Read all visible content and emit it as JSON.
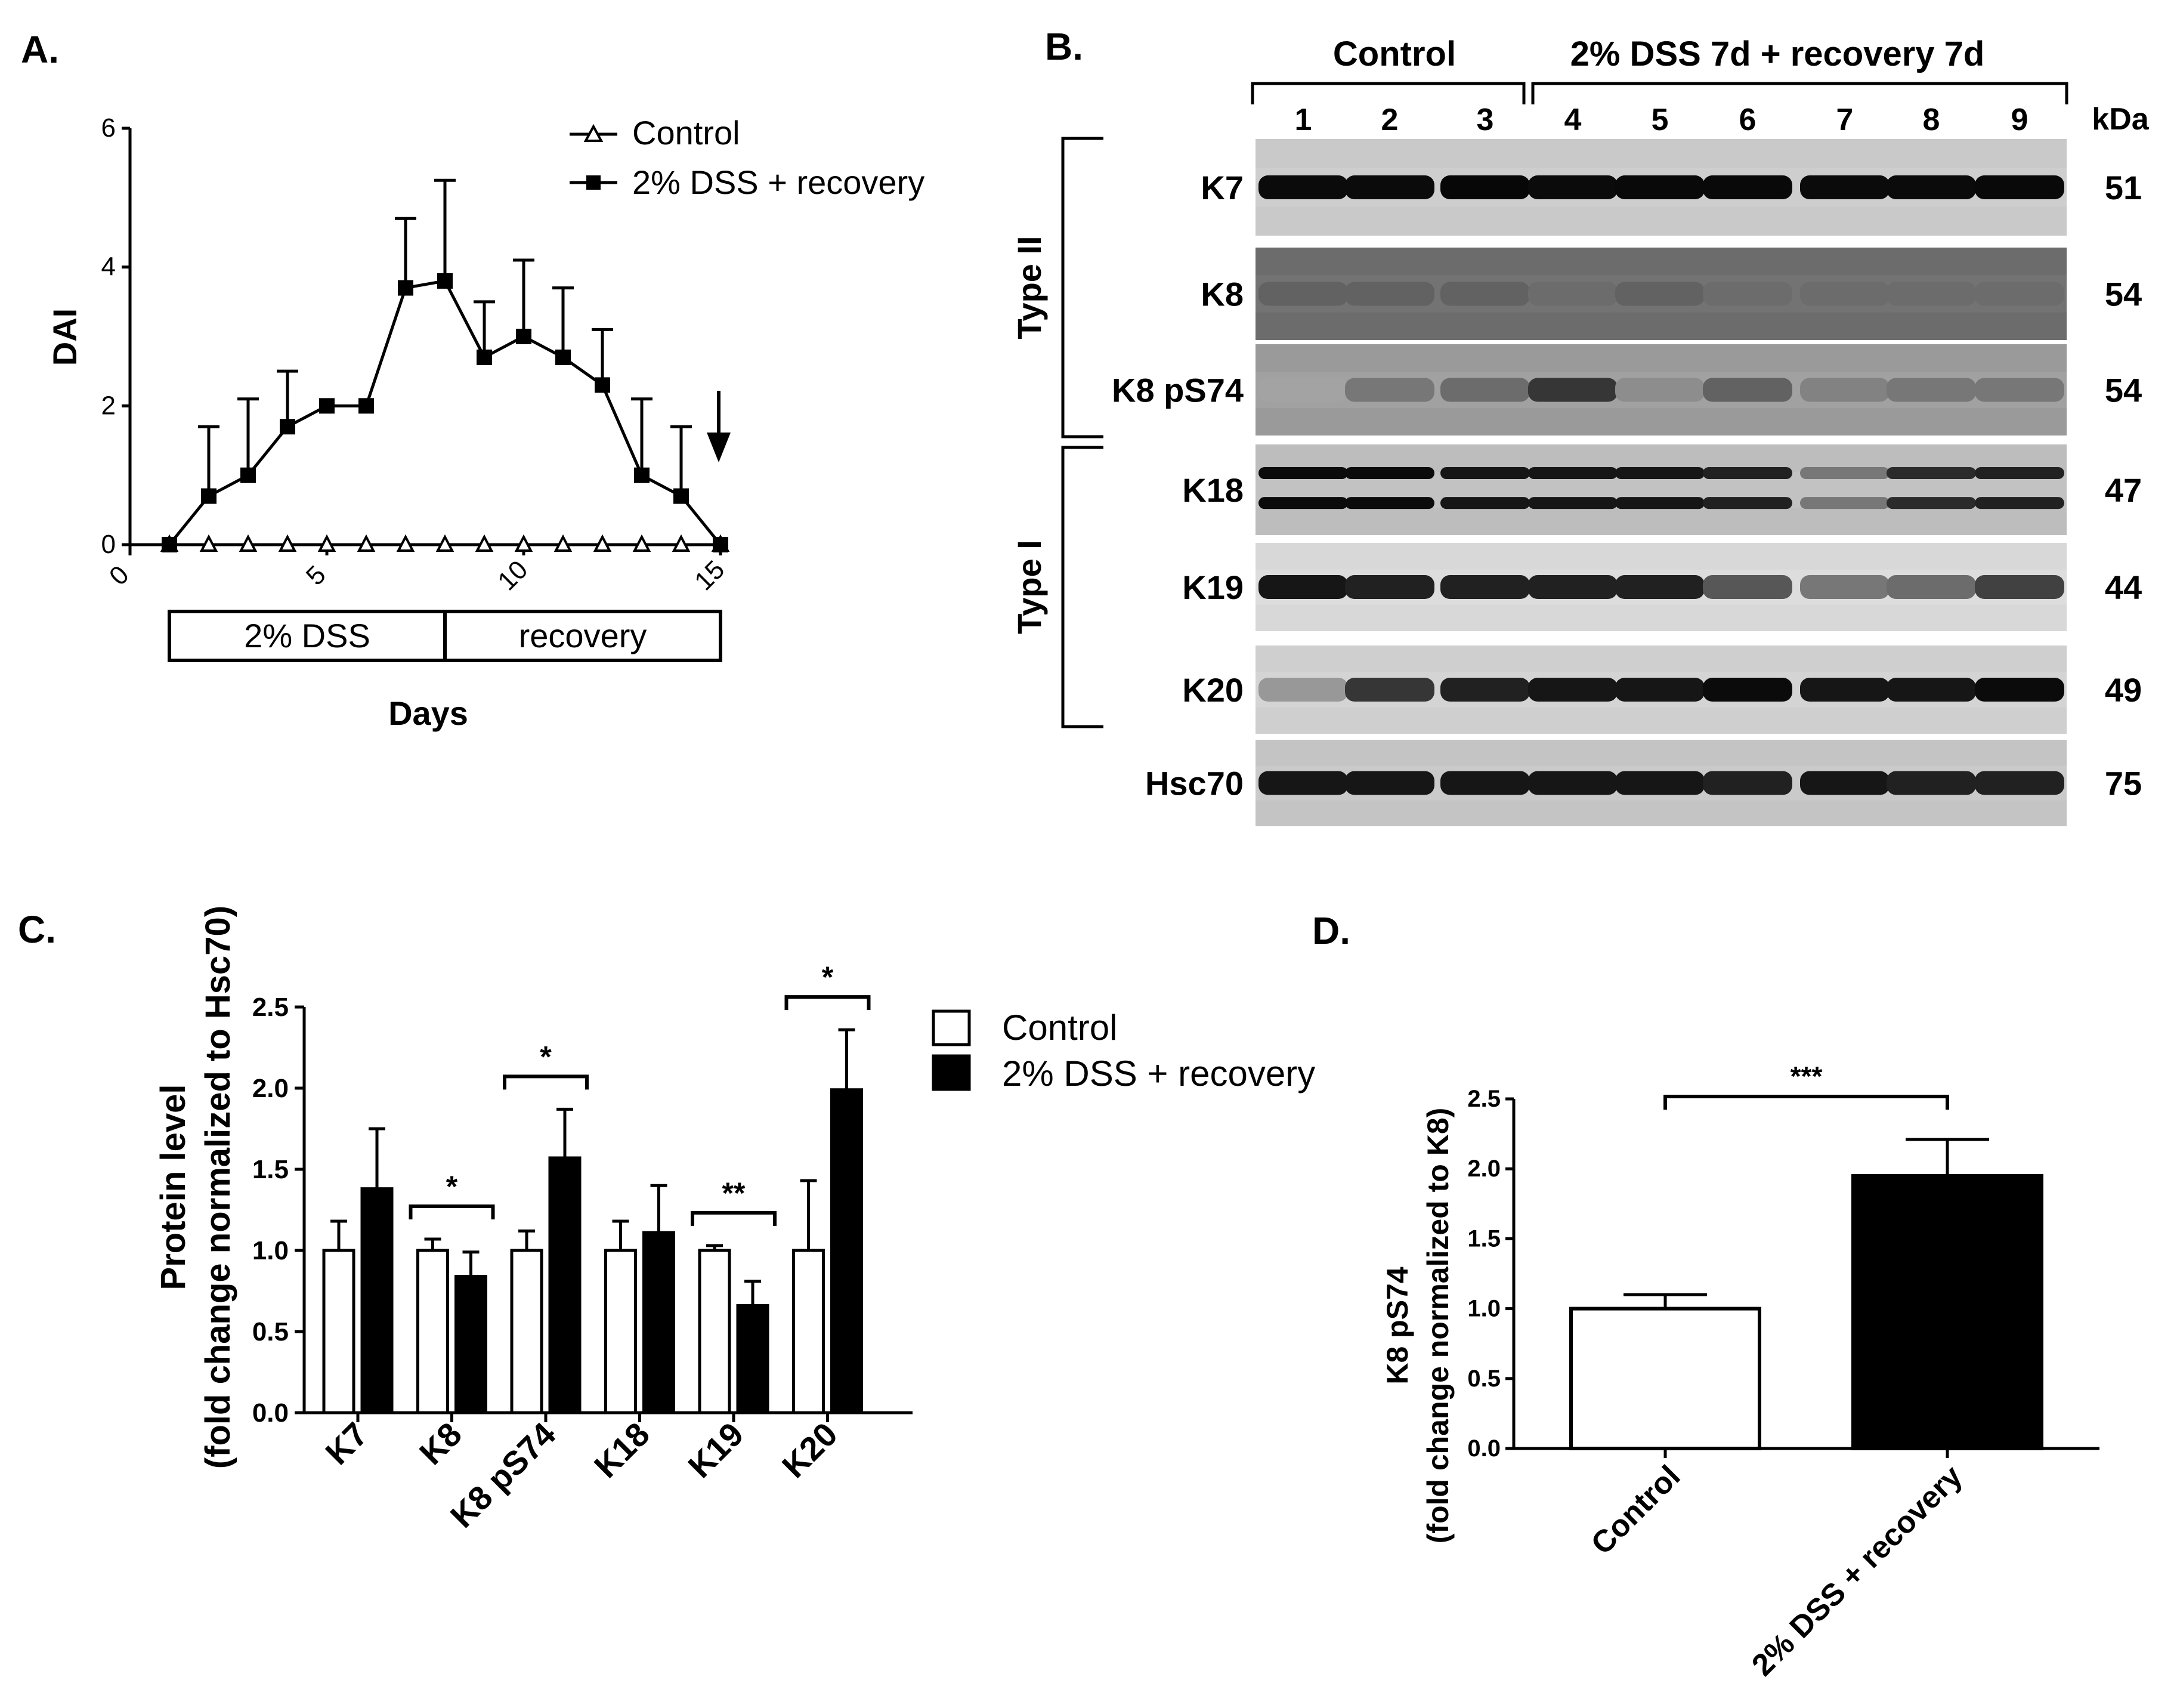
{
  "panels": {
    "a": {
      "letter": "A."
    },
    "b": {
      "letter": "B."
    },
    "c": {
      "letter": "C."
    },
    "d": {
      "letter": "D."
    }
  },
  "chart_data": [
    {
      "panel": "A",
      "type": "line",
      "xlabel": "Days",
      "ylabel": "DAI",
      "xlim": [
        0,
        15
      ],
      "ylim": [
        0,
        6
      ],
      "xticks": [
        "0",
        "5",
        "10",
        "15"
      ],
      "yticks": [
        "0",
        "2",
        "4",
        "6"
      ],
      "legend_position": "top-right",
      "series": [
        {
          "name": "Control",
          "marker": "open-triangle",
          "x": [
            1,
            2,
            3,
            4,
            5,
            6,
            7,
            8,
            9,
            10,
            11,
            12,
            13,
            14,
            15
          ],
          "y": [
            0,
            0,
            0,
            0,
            0,
            0,
            0,
            0,
            0,
            0,
            0,
            0,
            0,
            0,
            0
          ],
          "err": [
            0,
            0,
            0,
            0,
            0,
            0,
            0,
            0,
            0,
            0,
            0,
            0,
            0,
            0,
            0
          ]
        },
        {
          "name": "2% DSS + recovery",
          "marker": "filled-square",
          "x": [
            1,
            2,
            3,
            4,
            5,
            6,
            7,
            8,
            9,
            10,
            11,
            12,
            13,
            14,
            15
          ],
          "y": [
            0,
            0.7,
            1.0,
            1.7,
            2.0,
            2.0,
            3.7,
            3.8,
            2.7,
            3.0,
            2.7,
            2.3,
            1.0,
            0.7,
            0
          ],
          "err": [
            0,
            1.0,
            1.1,
            0.8,
            0,
            0,
            1.0,
            1.45,
            0.8,
            1.1,
            1.0,
            0.8,
            1.1,
            1.0,
            0
          ]
        }
      ],
      "periods": [
        {
          "label": "2% DSS",
          "start": 1,
          "end": 8
        },
        {
          "label": "recovery",
          "start": 8,
          "end": 15
        }
      ],
      "arrow_at_x": 15
    },
    {
      "panel": "B",
      "type": "western-blot",
      "group_labels": [
        "Control",
        "2% DSS 7d + recovery 7d"
      ],
      "lanes": [
        "1",
        "2",
        "3",
        "4",
        "5",
        "6",
        "7",
        "8",
        "9"
      ],
      "kda_header": "kDa",
      "type_labels": [
        "Type II",
        "Type I"
      ],
      "rows": [
        {
          "label": "K7",
          "kda": "51",
          "intensity": [
            0.95,
            0.95,
            0.97,
            0.95,
            0.96,
            0.96,
            0.95,
            0.95,
            0.96
          ]
        },
        {
          "label": "K8",
          "kda": "54",
          "intensity": [
            0.55,
            0.55,
            0.55,
            0.5,
            0.55,
            0.5,
            0.5,
            0.5,
            0.5
          ]
        },
        {
          "label": "K8 pS74",
          "kda": "54",
          "intensity": [
            0.25,
            0.45,
            0.5,
            0.75,
            0.35,
            0.55,
            0.4,
            0.45,
            0.45
          ]
        },
        {
          "label": "K18",
          "kda": "47",
          "intensity": [
            0.95,
            0.95,
            0.9,
            0.9,
            0.9,
            0.85,
            0.45,
            0.8,
            0.85
          ]
        },
        {
          "label": "K19",
          "kda": "44",
          "intensity": [
            0.9,
            0.85,
            0.85,
            0.85,
            0.85,
            0.6,
            0.45,
            0.5,
            0.7
          ]
        },
        {
          "label": "K20",
          "kda": "49",
          "intensity": [
            0.3,
            0.75,
            0.85,
            0.9,
            0.9,
            0.95,
            0.9,
            0.9,
            0.95
          ]
        },
        {
          "label": "Hsc70",
          "kda": "75",
          "intensity": [
            0.9,
            0.9,
            0.9,
            0.9,
            0.9,
            0.85,
            0.9,
            0.85,
            0.85
          ]
        }
      ]
    },
    {
      "panel": "C",
      "type": "bar",
      "ylabel": "Protein level",
      "ylabel_2": "(fold change normalized to Hsc70)",
      "ylim": [
        0,
        2.5
      ],
      "yticks": [
        "0.0",
        "0.5",
        "1.0",
        "1.5",
        "2.0",
        "2.5"
      ],
      "categories": [
        "K7",
        "K8",
        "K8 pS74",
        "K18",
        "K19",
        "K20"
      ],
      "legend_position": "top-right",
      "series": [
        {
          "name": "Control",
          "fill": "#ffffff",
          "values": [
            1.0,
            1.0,
            1.0,
            1.0,
            1.0,
            1.0
          ],
          "err": [
            0.18,
            0.07,
            0.12,
            0.18,
            0.03,
            0.43
          ]
        },
        {
          "name": "2% DSS + recovery",
          "fill": "#000000",
          "values": [
            1.38,
            0.84,
            1.57,
            1.11,
            0.66,
            1.99
          ],
          "err": [
            0.37,
            0.15,
            0.3,
            0.29,
            0.15,
            0.37
          ]
        }
      ],
      "significance": [
        "",
        "*",
        "*",
        "",
        "**",
        "*"
      ]
    },
    {
      "panel": "D",
      "type": "bar",
      "ylabel": "K8 pS74",
      "ylabel_2": "(fold change normalized to K8)",
      "ylim": [
        0,
        2.5
      ],
      "yticks": [
        "0.0",
        "0.5",
        "1.0",
        "1.5",
        "2.0",
        "2.5"
      ],
      "categories": [
        "Control",
        "2% DSS + recovery"
      ],
      "values": [
        1.0,
        1.95
      ],
      "err": [
        0.1,
        0.26
      ],
      "fills": [
        "#ffffff",
        "#000000"
      ],
      "significance": "***"
    }
  ]
}
